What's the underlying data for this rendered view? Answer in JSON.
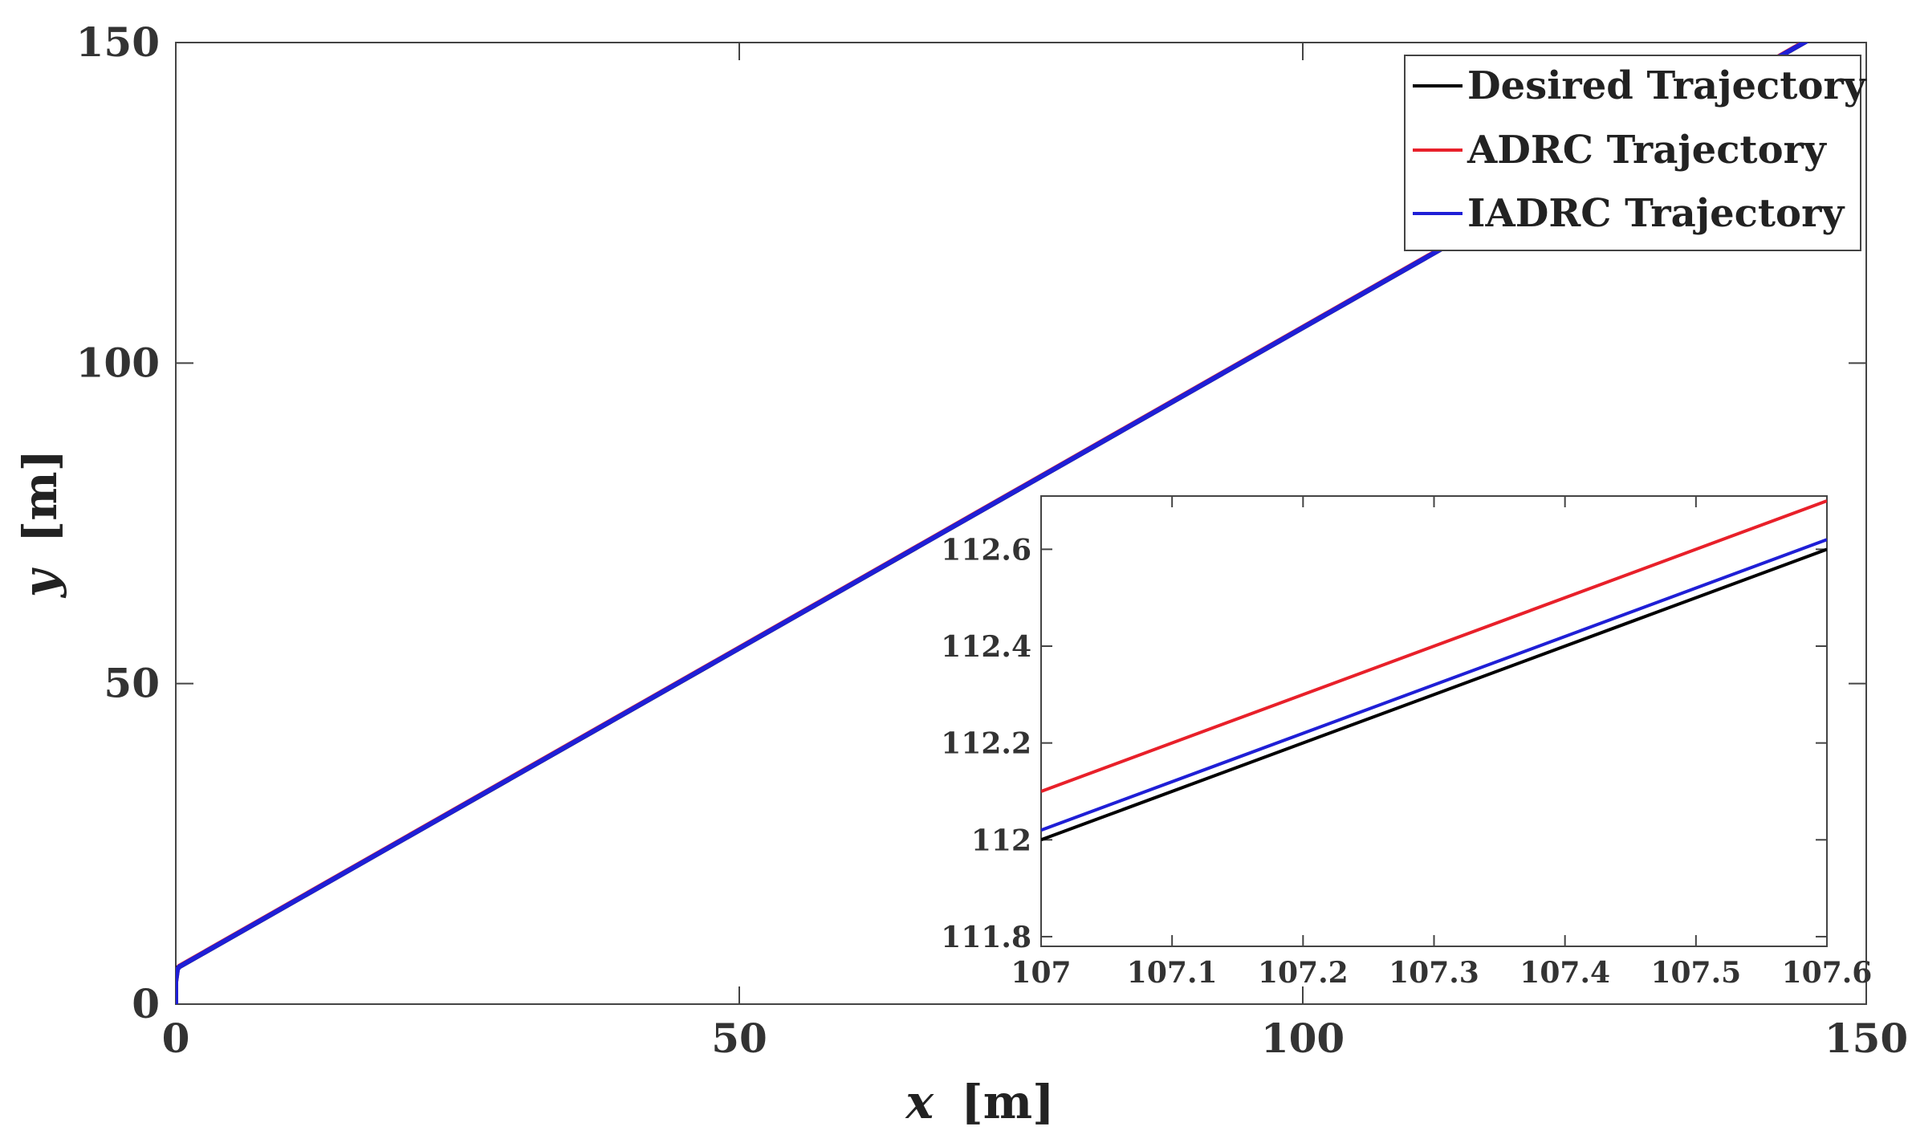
{
  "chart_data": [
    {
      "type": "line",
      "title": "",
      "xlabel_var": "x",
      "xlabel_unit": "[m]",
      "ylabel_var": "y",
      "ylabel_unit": "[m]",
      "xlim": [
        0,
        150
      ],
      "ylim": [
        0,
        150
      ],
      "x_ticks": [
        0,
        50,
        100,
        150
      ],
      "x_tick_labels": [
        "0",
        "50",
        "100",
        "150"
      ],
      "y_ticks": [
        0,
        50,
        100,
        150
      ],
      "y_tick_labels": [
        "0",
        "50",
        "100",
        "150"
      ],
      "grid": false,
      "legend_position": "top-right",
      "series": [
        {
          "name": "Desired Trajectory",
          "color": "#000000",
          "x": [
            0,
            0.3,
            150
          ],
          "y": [
            5.5,
            5.8,
            155.5
          ]
        },
        {
          "name": "ADRC Trajectory",
          "color": "#e8202a",
          "x": [
            0,
            0,
            0.15,
            0.3,
            150
          ],
          "y": [
            0,
            3.5,
            5.4,
            5.9,
            155.6
          ]
        },
        {
          "name": "IADRC Trajectory",
          "color": "#1f1fd6",
          "x": [
            0,
            0,
            0.15,
            0.3,
            150
          ],
          "y": [
            0,
            3.5,
            5.4,
            5.82,
            155.52
          ]
        }
      ]
    },
    {
      "type": "line",
      "title": "",
      "xlabel": "",
      "ylabel": "",
      "xlim": [
        107,
        107.6
      ],
      "ylim": [
        111.78,
        112.71
      ],
      "x_ticks": [
        107,
        107.1,
        107.2,
        107.3,
        107.4,
        107.5,
        107.6
      ],
      "x_tick_labels": [
        "107",
        "107.1",
        "107.2",
        "107.3",
        "107.4",
        "107.5",
        "107.6"
      ],
      "y_ticks": [
        111.8,
        112,
        112.2,
        112.4,
        112.6
      ],
      "y_tick_labels": [
        "111.8",
        "112",
        "112.2",
        "112.4",
        "112.6"
      ],
      "grid": false,
      "series": [
        {
          "color": "#000000",
          "x": [
            107,
            107.6
          ],
          "y": [
            112.0,
            112.6
          ]
        },
        {
          "color": "#e8202a",
          "x": [
            107,
            107.6
          ],
          "y": [
            112.1,
            112.7
          ]
        },
        {
          "color": "#1f1fd6",
          "x": [
            107,
            107.6
          ],
          "y": [
            112.02,
            112.62
          ]
        }
      ]
    }
  ]
}
